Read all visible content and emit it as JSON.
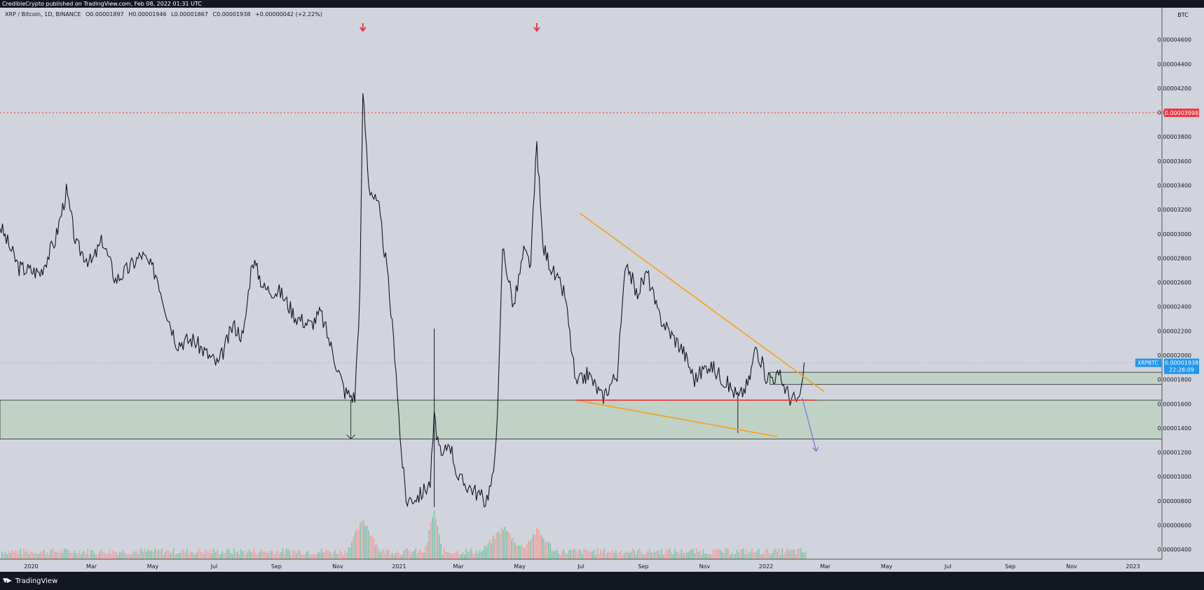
{
  "header": {
    "published_line": "CredibleCrypto published on TradingView.com, Feb 08, 2022 01:31 UTC"
  },
  "legend": {
    "symbol": "XRP / Bitcoin, 1D, BINANCE",
    "open_label": "O",
    "open": "0.00001897",
    "high_label": "H",
    "high": "0.00001946",
    "low_label": "L",
    "low": "0.00001867",
    "close_label": "C",
    "close": "0.00001938",
    "change": "+0.00000042 (+2.22%)"
  },
  "footer": {
    "brand": "TradingView",
    "logo_icon": "tradingview-logo-icon"
  },
  "colors": {
    "background": "#d1d4dc",
    "price_line": "#131722",
    "resistance_line": "#f23645",
    "wedge_line": "#f7a21b",
    "support_line": "#e8333a",
    "zone_fill": "#b9d1bf",
    "projection_arrow": "#7e6fd6",
    "marker_arrow": "#f23645",
    "current_price_tag": "#2196f3",
    "volume_up": "#7fc4a9",
    "volume_down": "#f0a1a1"
  },
  "chart_data": {
    "type": "line",
    "title": "XRP / Bitcoin, 1D, BINANCE",
    "ylabel": "BTC",
    "xlabel": "",
    "scale": "linear",
    "grid": false,
    "x_ticks": [
      "2020",
      "Mar",
      "May",
      "Jul",
      "Sep",
      "Nov",
      "2021",
      "Mar",
      "May",
      "Jul",
      "Sep",
      "Nov",
      "2022",
      "Mar",
      "May",
      "Jul",
      "Sep",
      "Nov",
      "2023"
    ],
    "y_ticks": [
      "0.00004600",
      "0.00004400",
      "0.00004200",
      "0.00004000",
      "0.00003800",
      "0.00003600",
      "0.00003400",
      "0.00003200",
      "0.00003000",
      "0.00002800",
      "0.00002600",
      "0.00002400",
      "0.00002200",
      "0.00002000",
      "0.00001800",
      "0.00001600",
      "0.00001400",
      "0.00001200",
      "0.00001000",
      "0.00000800",
      "0.00000600",
      "0.00000400"
    ],
    "ylim": [
      3.2e-06,
      4.8e-05
    ],
    "price_series": [
      [
        "2019-12-01",
        3.07e-05
      ],
      [
        "2019-12-20",
        2.72e-05
      ],
      [
        "2020-01-10",
        2.68e-05
      ],
      [
        "2020-01-25",
        2.95e-05
      ],
      [
        "2020-02-05",
        3.35e-05
      ],
      [
        "2020-02-15",
        2.9e-05
      ],
      [
        "2020-03-01",
        2.76e-05
      ],
      [
        "2020-03-12",
        2.95e-05
      ],
      [
        "2020-03-25",
        2.62e-05
      ],
      [
        "2020-04-05",
        2.7e-05
      ],
      [
        "2020-04-20",
        2.83e-05
      ],
      [
        "2020-05-05",
        2.66e-05
      ],
      [
        "2020-05-15",
        2.35e-05
      ],
      [
        "2020-05-25",
        2.1e-05
      ],
      [
        "2020-06-10",
        2.13e-05
      ],
      [
        "2020-06-25",
        2e-05
      ],
      [
        "2020-07-05",
        1.92e-05
      ],
      [
        "2020-07-20",
        2.25e-05
      ],
      [
        "2020-07-30",
        2.15e-05
      ],
      [
        "2020-08-08",
        2.8e-05
      ],
      [
        "2020-08-20",
        2.55e-05
      ],
      [
        "2020-09-05",
        2.52e-05
      ],
      [
        "2020-09-20",
        2.32e-05
      ],
      [
        "2020-10-05",
        2.25e-05
      ],
      [
        "2020-10-15",
        2.35e-05
      ],
      [
        "2020-10-28",
        2e-05
      ],
      [
        "2020-11-08",
        1.7e-05
      ],
      [
        "2020-11-18",
        1.65e-05
      ],
      [
        "2020-11-23",
        2.5e-05
      ],
      [
        "2020-11-26",
        4.18e-05
      ],
      [
        "2020-12-02",
        3.4e-05
      ],
      [
        "2020-12-12",
        3.2e-05
      ],
      [
        "2020-12-20",
        2.7e-05
      ],
      [
        "2020-12-29",
        1.9e-05
      ],
      [
        "2021-01-02",
        1.32e-05
      ],
      [
        "2021-01-08",
        8e-06
      ],
      [
        "2021-01-22",
        8.5e-06
      ],
      [
        "2021-02-01",
        9.5e-06
      ],
      [
        "2021-02-05",
        1.48e-05
      ],
      [
        "2021-02-12",
        1.13e-05
      ],
      [
        "2021-02-20",
        1.3e-05
      ],
      [
        "2021-03-01",
        9.8e-06
      ],
      [
        "2021-03-15",
        9e-06
      ],
      [
        "2021-03-28",
        8e-06
      ],
      [
        "2021-04-05",
        1e-05
      ],
      [
        "2021-04-10",
        1.75e-05
      ],
      [
        "2021-04-14",
        2.9e-05
      ],
      [
        "2021-04-25",
        2.4e-05
      ],
      [
        "2021-05-05",
        2.85e-05
      ],
      [
        "2021-05-12",
        2.75e-05
      ],
      [
        "2021-05-18",
        3.75e-05
      ],
      [
        "2021-05-24",
        2.9e-05
      ],
      [
        "2021-06-05",
        2.65e-05
      ],
      [
        "2021-06-15",
        2.5e-05
      ],
      [
        "2021-06-26",
        1.75e-05
      ],
      [
        "2021-07-08",
        1.85e-05
      ],
      [
        "2021-07-22",
        1.65e-05
      ],
      [
        "2021-08-06",
        1.85e-05
      ],
      [
        "2021-08-15",
        2.8e-05
      ],
      [
        "2021-08-25",
        2.5e-05
      ],
      [
        "2021-09-05",
        2.68e-05
      ],
      [
        "2021-09-15",
        2.35e-05
      ],
      [
        "2021-09-28",
        2.18e-05
      ],
      [
        "2021-10-10",
        2.05e-05
      ],
      [
        "2021-10-22",
        1.8e-05
      ],
      [
        "2021-11-05",
        1.93e-05
      ],
      [
        "2021-11-20",
        1.8e-05
      ],
      [
        "2021-12-05",
        1.65e-05
      ],
      [
        "2021-12-15",
        1.78e-05
      ],
      [
        "2021-12-22",
        2.08e-05
      ],
      [
        "2022-01-01",
        1.83e-05
      ],
      [
        "2022-01-15",
        1.82e-05
      ],
      [
        "2022-01-25",
        1.65e-05
      ],
      [
        "2022-02-04",
        1.62e-05
      ],
      [
        "2022-02-08",
        1.94e-05
      ]
    ],
    "annotations": {
      "resistance_level": 3.998e-05,
      "resistance_label": "0.00003998",
      "current_price": 1.938e-05,
      "current_price_label": "0.00001938",
      "symbol_tag": "XRPBTC",
      "countdown": "22:28:09",
      "lower_zone": [
        1.31e-05,
        1.63e-05
      ],
      "upper_zone": [
        1.76e-05,
        1.86e-05
      ],
      "support_line": {
        "from": [
          "2021-06-26",
          1.63e-05
        ],
        "to": [
          "2022-02-20",
          1.63e-05
        ]
      },
      "wedge_upper": {
        "from": [
          "2021-06-30",
          3.17e-05
        ],
        "to": [
          "2022-02-28",
          1.7e-05
        ]
      },
      "wedge_lower": {
        "from": [
          "2021-06-26",
          1.63e-05
        ],
        "to": [
          "2022-01-12",
          1.33e-05
        ]
      },
      "projection_arrow": {
        "from": [
          "2022-02-06",
          1.65e-05
        ],
        "to": [
          "2022-02-20",
          1.21e-05
        ]
      },
      "drop_arrow": {
        "from": [
          "2020-11-14",
          1.63e-05
        ],
        "to": [
          "2020-11-14",
          1.31e-05
        ]
      },
      "top_markers": [
        "2020-11-26",
        "2021-05-18"
      ]
    }
  }
}
